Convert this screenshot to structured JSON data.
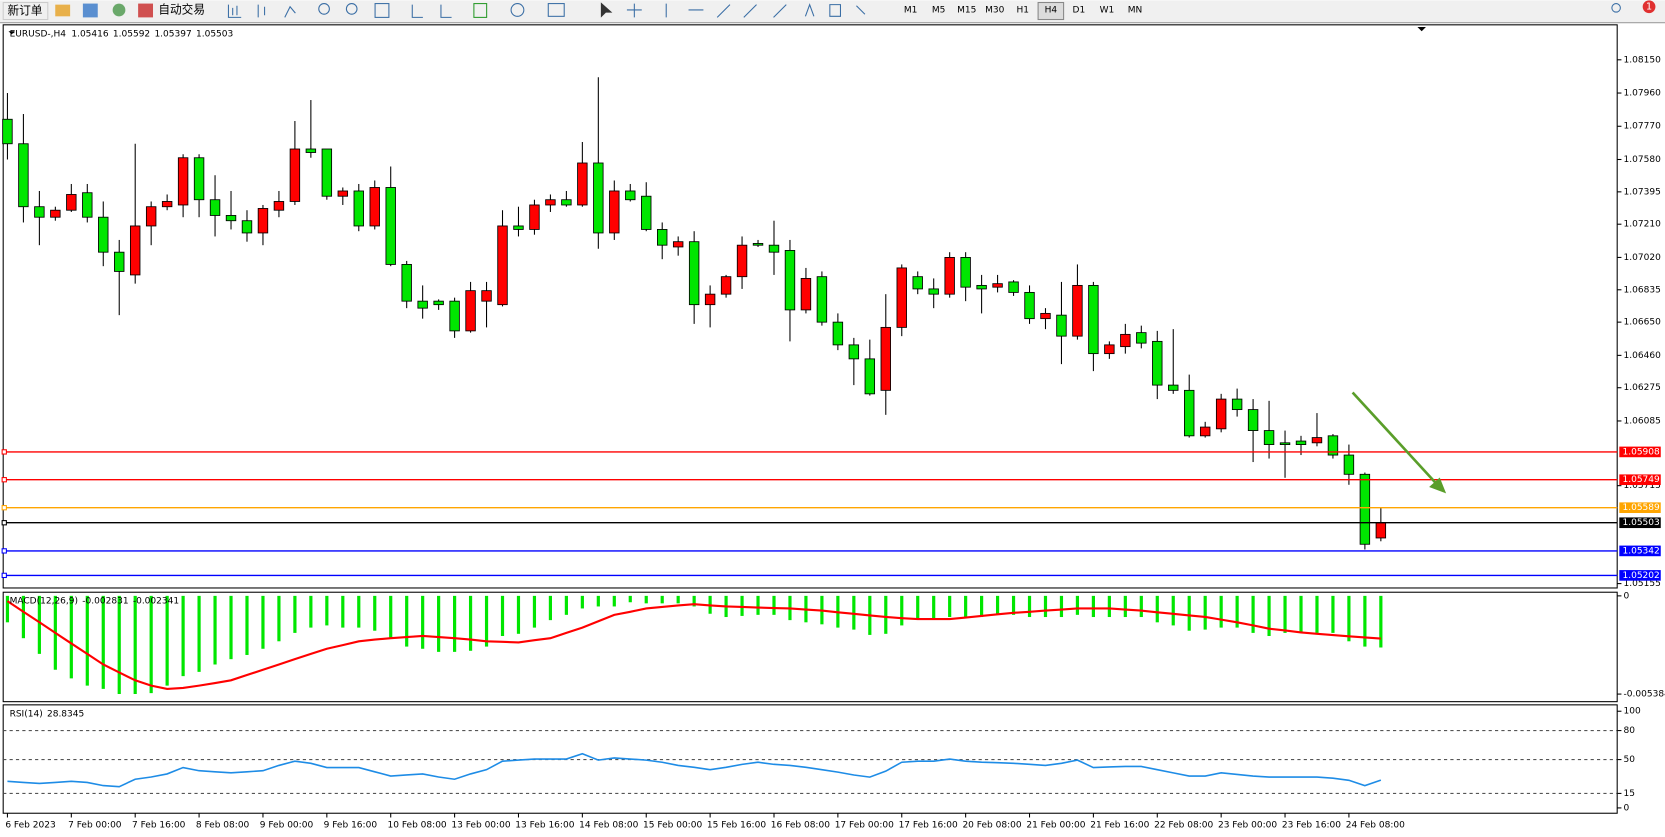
{
  "toolbar": {
    "new_order": "新订单",
    "auto_trading": "自动交易",
    "timeframes": [
      "M1",
      "M5",
      "M15",
      "M30",
      "H1",
      "H4",
      "D1",
      "W1",
      "MN"
    ],
    "selected": "H4",
    "alerts": "1"
  },
  "chart_data": [
    {
      "type": "candlestick",
      "title": "EURUSD-,H4",
      "up_color": "#ff0000",
      "down_color": "#00e600",
      "categories": [
        "6 Feb 2023",
        null,
        null,
        null,
        "7 Feb 00:00",
        null,
        null,
        null,
        "7 Feb 16:00",
        null,
        null,
        null,
        "8 Feb 08:00",
        null,
        null,
        null,
        "9 Feb 00:00",
        null,
        null,
        null,
        "9 Feb 16:00",
        null,
        null,
        null,
        "10 Feb 08:00",
        null,
        null,
        null,
        "13 Feb 00:00",
        null,
        null,
        null,
        "13 Feb 16:00",
        null,
        null,
        null,
        "14 Feb 08:00",
        null,
        null,
        null,
        "15 Feb 00:00",
        null,
        null,
        null,
        "15 Feb 16:00",
        null,
        null,
        null,
        "16 Feb 08:00",
        null,
        null,
        null,
        "17 Feb 00:00",
        null,
        null,
        null,
        "17 Feb 16:00",
        null,
        null,
        null,
        "20 Feb 08:00",
        null,
        null,
        null,
        "21 Feb 00:00",
        null,
        null,
        null,
        "21 Feb 16:00",
        null,
        null,
        null,
        "22 Feb 08:00",
        null,
        null,
        null,
        "23 Feb 00:00",
        null,
        null,
        null,
        "23 Feb 16:00",
        null,
        null,
        null,
        "24 Feb 08:00",
        null,
        null
      ],
      "ohlc": [
        [
          1.0781,
          1.0796,
          1.0758,
          1.0767
        ],
        [
          1.0767,
          1.0784,
          1.0722,
          1.0731
        ],
        [
          1.0731,
          1.074,
          1.0709,
          1.0725
        ],
        [
          1.0725,
          1.0731,
          1.0723,
          1.0729
        ],
        [
          1.0729,
          1.0744,
          1.0728,
          1.0738
        ],
        [
          1.0739,
          1.0744,
          1.0722,
          1.0725
        ],
        [
          1.0725,
          1.0734,
          1.0697,
          1.0705
        ],
        [
          1.0705,
          1.0712,
          1.0669,
          1.0694
        ],
        [
          1.0692,
          1.0767,
          1.0687,
          1.072
        ],
        [
          1.072,
          1.0734,
          1.0709,
          1.0731
        ],
        [
          1.0731,
          1.0738,
          1.0729,
          1.0734
        ],
        [
          1.0732,
          1.0761,
          1.0725,
          1.0759
        ],
        [
          1.0759,
          1.0761,
          1.0725,
          1.0735
        ],
        [
          1.0735,
          1.0749,
          1.0714,
          1.0726
        ],
        [
          1.0726,
          1.074,
          1.0718,
          1.0723
        ],
        [
          1.0723,
          1.0729,
          1.0711,
          1.0716
        ],
        [
          1.0716,
          1.0732,
          1.0709,
          1.073
        ],
        [
          1.0729,
          1.074,
          1.0725,
          1.0734
        ],
        [
          1.0734,
          1.078,
          1.0732,
          1.0764
        ],
        [
          1.0764,
          1.0792,
          1.0759,
          1.0762
        ],
        [
          1.0764,
          1.0764,
          1.0735,
          1.0737
        ],
        [
          1.0737,
          1.0742,
          1.0732,
          1.074
        ],
        [
          1.074,
          1.0744,
          1.0717,
          1.072
        ],
        [
          1.072,
          1.0746,
          1.0718,
          1.0742
        ],
        [
          1.0742,
          1.0754,
          1.0697,
          1.0698
        ],
        [
          1.0698,
          1.07,
          1.0673,
          1.0677
        ],
        [
          1.0677,
          1.0686,
          1.0667,
          1.0673
        ],
        [
          1.0677,
          1.0678,
          1.0672,
          1.0675
        ],
        [
          1.0677,
          1.0679,
          1.0656,
          1.066
        ],
        [
          1.066,
          1.0688,
          1.0659,
          1.0683
        ],
        [
          1.0677,
          1.0688,
          1.0662,
          1.0683
        ],
        [
          1.0675,
          1.0729,
          1.0674,
          1.072
        ],
        [
          1.072,
          1.0731,
          1.0714,
          1.0718
        ],
        [
          1.0718,
          1.0735,
          1.0715,
          1.0732
        ],
        [
          1.0732,
          1.0738,
          1.0728,
          1.0735
        ],
        [
          1.0735,
          1.074,
          1.0731,
          1.0732
        ],
        [
          1.0732,
          1.0768,
          1.0731,
          1.0756
        ],
        [
          1.0756,
          1.0805,
          1.0707,
          1.0716
        ],
        [
          1.0716,
          1.0746,
          1.0712,
          1.074
        ],
        [
          1.074,
          1.0744,
          1.0734,
          1.0735
        ],
        [
          1.0737,
          1.0745,
          1.0717,
          1.0718
        ],
        [
          1.0718,
          1.0722,
          1.0701,
          1.0709
        ],
        [
          1.0708,
          1.0714,
          1.0703,
          1.0711
        ],
        [
          1.0711,
          1.0717,
          1.0664,
          1.0675
        ],
        [
          1.0675,
          1.0686,
          1.0662,
          1.0681
        ],
        [
          1.0681,
          1.0692,
          1.0679,
          1.0691
        ],
        [
          1.0691,
          1.0714,
          1.0684,
          1.0709
        ],
        [
          1.071,
          1.0712,
          1.0708,
          1.0709
        ],
        [
          1.0709,
          1.0723,
          1.0692,
          1.0705
        ],
        [
          1.0706,
          1.0712,
          1.0654,
          1.0672
        ],
        [
          1.0672,
          1.0696,
          1.067,
          1.069
        ],
        [
          1.0691,
          1.0694,
          1.0663,
          1.0665
        ],
        [
          1.0665,
          1.067,
          1.0649,
          1.0652
        ],
        [
          1.0652,
          1.0656,
          1.0629,
          1.0644
        ],
        [
          1.0644,
          1.0655,
          1.0623,
          1.0624
        ],
        [
          1.0626,
          1.0681,
          1.0612,
          1.0662
        ],
        [
          1.0662,
          1.0698,
          1.0657,
          1.0696
        ],
        [
          1.0691,
          1.0694,
          1.0681,
          1.0684
        ],
        [
          1.0684,
          1.069,
          1.0673,
          1.0681
        ],
        [
          1.0681,
          1.0705,
          1.0679,
          1.0702
        ],
        [
          1.0702,
          1.0705,
          1.0677,
          1.0685
        ],
        [
          1.0686,
          1.0692,
          1.067,
          1.0684
        ],
        [
          1.0685,
          1.0692,
          1.0682,
          1.0687
        ],
        [
          1.0688,
          1.0689,
          1.068,
          1.0682
        ],
        [
          1.0682,
          1.0686,
          1.0664,
          1.0667
        ],
        [
          1.0667,
          1.0673,
          1.0661,
          1.067
        ],
        [
          1.0669,
          1.0688,
          1.0641,
          1.0657
        ],
        [
          1.0657,
          1.0698,
          1.0655,
          1.0686
        ],
        [
          1.0686,
          1.0688,
          1.0637,
          1.0647
        ],
        [
          1.0647,
          1.0654,
          1.0644,
          1.0652
        ],
        [
          1.0651,
          1.0664,
          1.0647,
          1.0658
        ],
        [
          1.0659,
          1.0663,
          1.065,
          1.0653
        ],
        [
          1.0654,
          1.066,
          1.0621,
          1.0629
        ],
        [
          1.0629,
          1.0661,
          1.0624,
          1.0626
        ],
        [
          1.0626,
          1.0635,
          1.0599,
          1.06
        ],
        [
          1.06,
          1.0608,
          1.0599,
          1.0605
        ],
        [
          1.0604,
          1.0624,
          1.0602,
          1.0621
        ],
        [
          1.0621,
          1.0627,
          1.0611,
          1.0615
        ],
        [
          1.0615,
          1.0621,
          1.0585,
          1.0603
        ],
        [
          1.0603,
          1.062,
          1.0587,
          1.0595
        ],
        [
          1.0596,
          1.0603,
          1.0576,
          1.0595
        ],
        [
          1.0597,
          1.06,
          1.0589,
          1.0595
        ],
        [
          1.0596,
          1.0613,
          1.0594,
          1.0599
        ],
        [
          1.06,
          1.0601,
          1.0587,
          1.0589
        ],
        [
          1.0589,
          1.0595,
          1.0572,
          1.0578
        ],
        [
          1.0578,
          1.0579,
          1.0535,
          1.0538
        ],
        [
          1.05416,
          1.05592,
          1.05397,
          1.05503
        ]
      ],
      "ylim": [
        1.0513,
        1.0835
      ],
      "yticks": [
        {
          "value": 1.0815,
          "label": "1.08150"
        },
        {
          "value": 1.0796,
          "label": "1.07960"
        },
        {
          "value": 1.0777,
          "label": "1.07770"
        },
        {
          "value": 1.0758,
          "label": "1.07580"
        },
        1.07395,
        {
          "value": 1.0721,
          "label": "1.07210"
        },
        {
          "value": 1.0702,
          "label": "1.07020"
        },
        1.06835,
        {
          "value": 1.0665,
          "label": "1.06650"
        },
        {
          "value": 1.0646,
          "label": "1.06460"
        },
        1.06275,
        1.06085,
        1.05715,
        1.05155
      ],
      "levels": [
        {
          "value": 1.05908,
          "color": "#ff0000"
        },
        {
          "value": 1.05749,
          "color": "#ff0000"
        },
        {
          "value": 1.05589,
          "color": "#ffa500"
        },
        {
          "value": 1.05342,
          "color": "#0000ff"
        },
        {
          "value": 1.05202,
          "color": "#0000ff"
        }
      ],
      "price_color": "#000000"
    },
    {
      "type": "macd",
      "title": "MACD(12,26,9)",
      "series": [
        {
          "color": "#00e600",
          "values": [
            -0.00145,
            -0.00232,
            -0.00318,
            -0.00405,
            -0.00452,
            -0.00492,
            -0.0051,
            -0.00538,
            -0.00538,
            -0.00533,
            -0.00492,
            -0.0044,
            -0.00417,
            -0.00376,
            -0.00347,
            -0.00324,
            -0.0029,
            -0.00249,
            -0.00203,
            -0.00174,
            -0.00162,
            -0.00174,
            -0.00174,
            -0.00191,
            -0.00232,
            -0.00278,
            -0.0029,
            -0.00307,
            -0.00307,
            -0.00301,
            -0.00278,
            -0.0022,
            -0.00208,
            -0.00174,
            -0.00133,
            -0.00104,
            -0.00069,
            -0.00058,
            -0.00058,
            -0.00035,
            -0.00041,
            -0.00041,
            -0.00041,
            -0.00058,
            -0.00098,
            -0.00116,
            -0.0011,
            -0.00104,
            -0.00104,
            -0.00133,
            -0.00145,
            -0.00156,
            -0.00174,
            -0.00185,
            -0.00214,
            -0.00208,
            -0.00162,
            -0.00127,
            -0.00127,
            -0.00116,
            -0.00116,
            -0.00116,
            -0.00104,
            -0.00104,
            -0.00116,
            -0.00116,
            -0.00116,
            -0.00104,
            -0.00116,
            -0.00116,
            -0.00116,
            -0.00116,
            -0.00145,
            -0.00162,
            -0.00191,
            -0.00185,
            -0.00174,
            -0.00174,
            -0.00203,
            -0.0022,
            -0.00203,
            -0.00203,
            -0.00203,
            -0.00203,
            -0.00249,
            -0.00278,
            -0.002831
          ]
        },
        {
          "color": "#ff0000",
          "values": [
            -0.00029,
            -0.00087,
            -0.00145,
            -0.00203,
            -0.00261,
            -0.00318,
            -0.00376,
            -0.0042,
            -0.00463,
            -0.00492,
            -0.0051,
            -0.00505,
            -0.00492,
            -0.00478,
            -0.00463,
            -0.00434,
            -0.00405,
            -0.00376,
            -0.00347,
            -0.00318,
            -0.0029,
            -0.0027,
            -0.00249,
            -0.0024,
            -0.00232,
            -0.00226,
            -0.0022,
            -0.00226,
            -0.00232,
            -0.0024,
            -0.00249,
            -0.00252,
            -0.00255,
            -0.00243,
            -0.00232,
            -0.00203,
            -0.00174,
            -0.00139,
            -0.00104,
            -0.00087,
            -0.00069,
            -0.00061,
            -0.00052,
            -0.00046,
            -0.00052,
            -0.00058,
            -0.00061,
            -0.00064,
            -0.00067,
            -0.00069,
            -0.00075,
            -0.00081,
            -0.0009,
            -0.00098,
            -0.00107,
            -0.00116,
            -0.00122,
            -0.00127,
            -0.00127,
            -0.00127,
            -0.00119,
            -0.0011,
            -0.00101,
            -0.00093,
            -0.00087,
            -0.00081,
            -0.00075,
            -0.00069,
            -0.00069,
            -0.00069,
            -0.00075,
            -0.00081,
            -0.0009,
            -0.00098,
            -0.00107,
            -0.00116,
            -0.0013,
            -0.00145,
            -0.00162,
            -0.0018,
            -0.0019,
            -0.002,
            -0.00208,
            -0.00215,
            -0.00222,
            -0.00228,
            -0.002341
          ]
        }
      ],
      "ylim": [
        -0.0058,
        0.0002
      ],
      "yticks": [
        0,
        -0.005384
      ]
    },
    {
      "type": "line",
      "title": "RSI(14)",
      "color": "#1e8ce6",
      "values": [
        27.5,
        26.4,
        25.3,
        26.4,
        27.5,
        26.4,
        23.1,
        22.0,
        29.7,
        32.0,
        35.2,
        41.8,
        38.5,
        37.4,
        36.3,
        37.4,
        38.5,
        44.0,
        48.4,
        46.2,
        41.8,
        41.8,
        41.8,
        37.4,
        33.0,
        34.1,
        35.2,
        32.0,
        29.7,
        35.2,
        39.6,
        48.4,
        49.5,
        50.5,
        50.5,
        50.5,
        56.0,
        49.5,
        51.6,
        50.5,
        49.5,
        47.3,
        44.0,
        42.0,
        39.6,
        42.0,
        45.1,
        47.3,
        45.0,
        44.0,
        42.0,
        39.6,
        37.0,
        34.1,
        31.9,
        38.0,
        47.3,
        48.4,
        48.4,
        50.5,
        48.4,
        47.3,
        46.8,
        46.2,
        45.1,
        44.0,
        46.2,
        49.5,
        41.8,
        42.4,
        42.9,
        42.9,
        39.6,
        36.3,
        33.0,
        33.0,
        36.3,
        34.6,
        33.0,
        31.9,
        31.9,
        31.9,
        31.9,
        30.8,
        28.6,
        23.1,
        28.8345
      ],
      "ylim": [
        -5.5,
        106.6
      ],
      "yticks": [
        100,
        80,
        50,
        15,
        0
      ],
      "levels": [
        80,
        50,
        15
      ]
    }
  ]
}
